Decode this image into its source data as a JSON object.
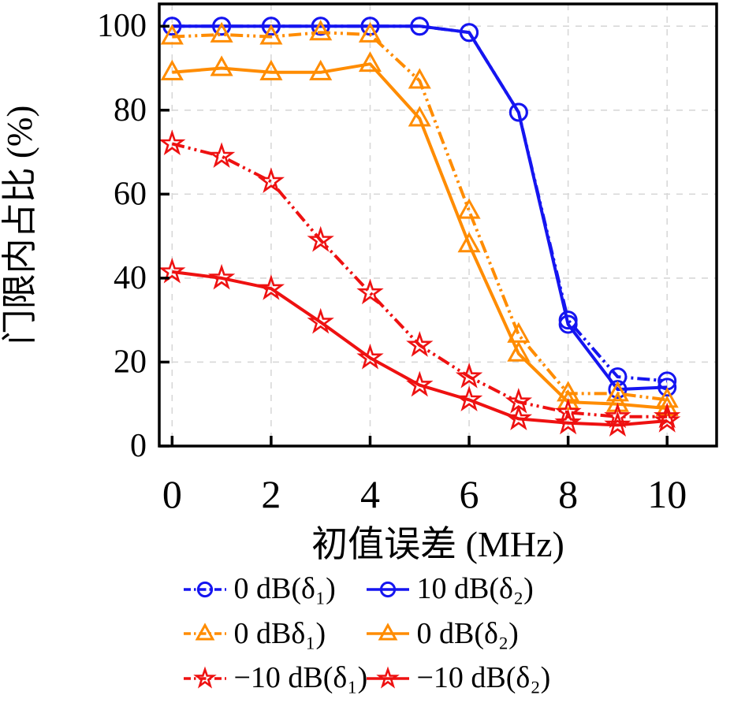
{
  "figure": {
    "background": "#ffffff",
    "frame_color": "#000000",
    "grid_color": "#d8d8d8"
  },
  "chart_data": {
    "type": "line",
    "title": "",
    "xlabel": "初值误差 (MHz)",
    "ylabel": "门限内占比 (%)",
    "xlim": [
      -0.26,
      11.0
    ],
    "ylim": [
      0,
      105.3
    ],
    "xticks": [
      0,
      2,
      4,
      6,
      8,
      10
    ],
    "yticks": [
      0,
      20,
      40,
      60,
      80,
      100
    ],
    "xtick_labels": [
      "0",
      "2",
      "4",
      "6",
      "8",
      "10"
    ],
    "ytick_labels": [
      "0",
      "20",
      "40",
      "60",
      "80",
      "100"
    ],
    "grid": true,
    "legend_position": "below",
    "x": [
      0,
      1,
      2,
      3,
      4,
      5,
      6,
      7,
      8,
      9,
      10
    ],
    "series": [
      {
        "name": "0 dB(δ₁)",
        "color": "#1515f0",
        "style": "dashdot",
        "marker": "circle",
        "values": [
          100,
          100,
          100,
          100,
          100,
          100,
          98.5,
          79.5,
          30,
          16.5,
          15.5
        ]
      },
      {
        "name": "10 dB(δ₂)",
        "color": "#1515f0",
        "style": "solid",
        "marker": "circle",
        "values": [
          100,
          100,
          100,
          100,
          100,
          100,
          98.5,
          79.5,
          29,
          13.5,
          14
        ]
      },
      {
        "name": "0 dBδ₁)",
        "color": "#ff8c00",
        "style": "dashdot",
        "marker": "triangle",
        "values": [
          97.5,
          98,
          97.5,
          98.5,
          98,
          87,
          56,
          26.5,
          12.5,
          12.5,
          11
        ]
      },
      {
        "name": "0 dB(δ₂)",
        "color": "#ff8c00",
        "style": "solid",
        "marker": "triangle",
        "values": [
          89,
          90,
          89,
          89,
          91,
          78,
          48,
          22,
          10.5,
          10,
          9
        ]
      },
      {
        "name": "−10 dB(δ₁)",
        "color": "#ee1111",
        "style": "dashdot",
        "marker": "star",
        "values": [
          72,
          69,
          63,
          49,
          36.5,
          24,
          16.5,
          10.5,
          8,
          7,
          7
        ]
      },
      {
        "name": "−10 dB(δ₂)",
        "color": "#ee1111",
        "style": "solid",
        "marker": "star",
        "values": [
          41.5,
          40,
          37.5,
          29.5,
          21,
          14.5,
          11,
          6.5,
          5.5,
          5,
          6
        ]
      }
    ],
    "legend_rows": [
      [
        0,
        1
      ],
      [
        2,
        3
      ],
      [
        4,
        5
      ]
    ],
    "draw_order": [
      1,
      3,
      5,
      0,
      2,
      4
    ]
  }
}
